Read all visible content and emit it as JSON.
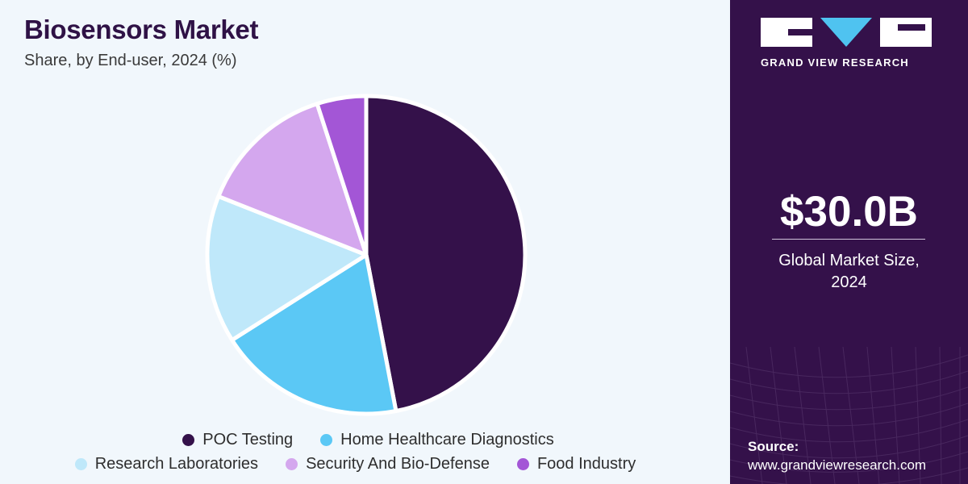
{
  "header": {
    "title": "Biosensors Market",
    "subtitle": "Share, by End-user, 2024 (%)"
  },
  "brand": {
    "name": "GRAND VIEW RESEARCH",
    "accent_color": "#4fc3f0",
    "panel_color": "#34114a"
  },
  "summary": {
    "value": "$30.0B",
    "caption_line1": "Global Market Size,",
    "caption_line2": "2024"
  },
  "source": {
    "label": "Source:",
    "url": "www.grandviewresearch.com"
  },
  "chart_data": {
    "type": "pie",
    "title": "Biosensors Market",
    "subtitle": "Share, by End-user, 2024 (%)",
    "legend_position": "bottom",
    "slices": [
      {
        "label": "POC Testing",
        "value": 47,
        "color": "#34114a"
      },
      {
        "label": "Home Healthcare Diagnostics",
        "value": 19,
        "color": "#5bc8f5"
      },
      {
        "label": "Research Laboratories",
        "value": 15,
        "color": "#bfe8fa"
      },
      {
        "label": "Security And Bio-Defense",
        "value": 14,
        "color": "#d4a7ee"
      },
      {
        "label": "Food Industry",
        "value": 5,
        "color": "#a356d6"
      }
    ]
  }
}
